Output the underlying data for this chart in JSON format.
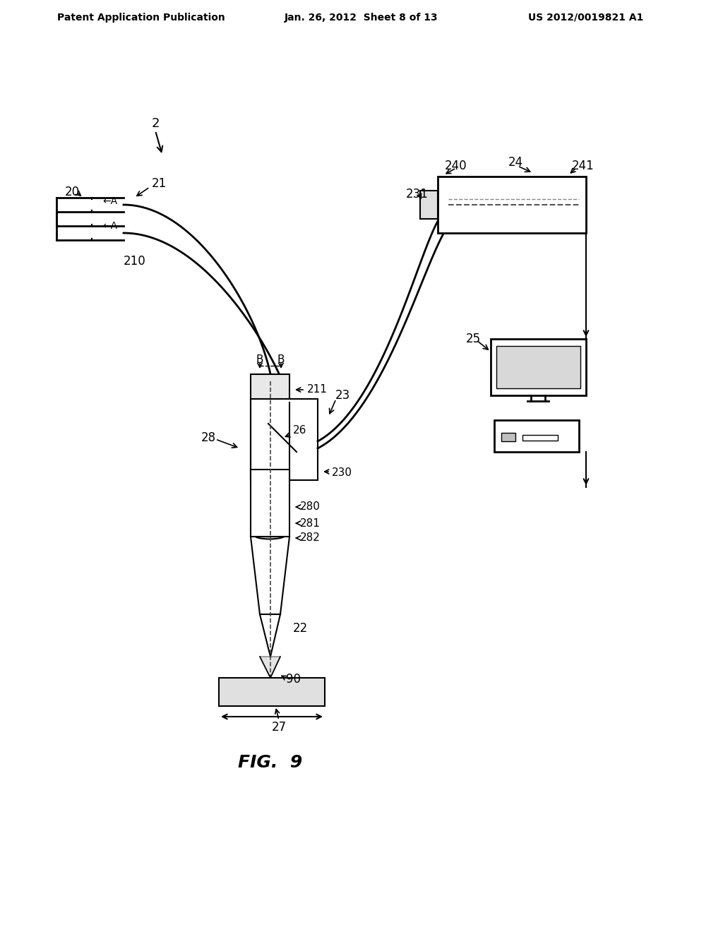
{
  "header_left": "Patent Application Publication",
  "header_mid": "Jan. 26, 2012  Sheet 8 of 13",
  "header_right": "US 2012/0019821 A1",
  "fig_label": "FIG.  9",
  "bg_color": "#ffffff",
  "line_color": "#000000",
  "gray_color": "#888888",
  "light_gray": "#cccccc"
}
